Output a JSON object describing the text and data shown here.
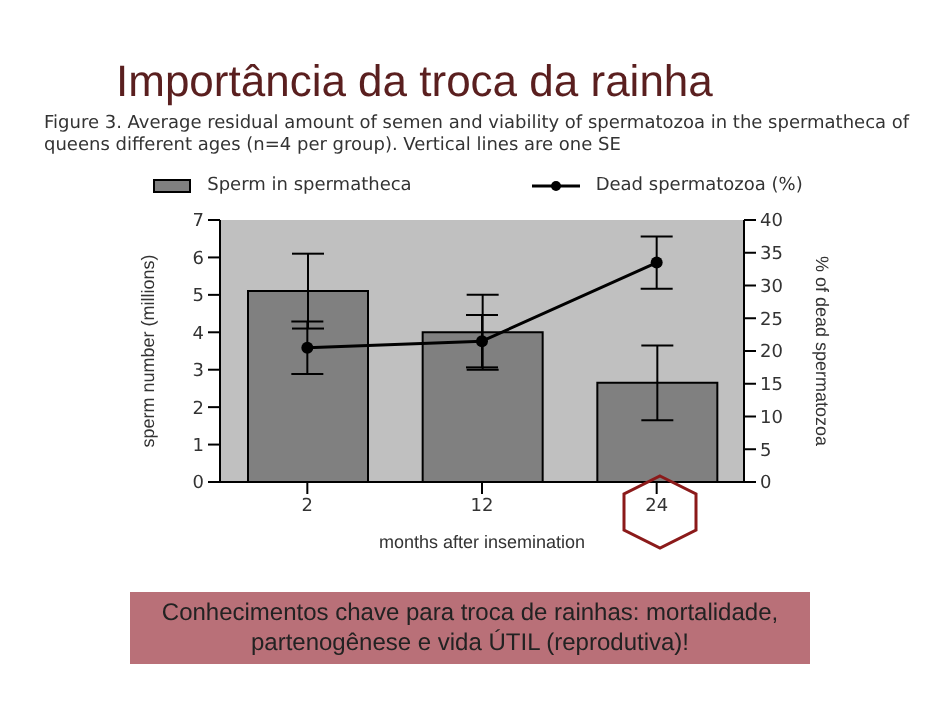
{
  "chart_data": {
    "type": "bar",
    "title": "Importância da troca da rainha",
    "subtitle": "Figure 3.    Average residual amount of semen and viability of spermatozoa in the spermatheca of queens different ages (n=4 per group). Vertical lines are one SE",
    "xlabel": "months after insemination",
    "ylabel": "sperm number (millions)",
    "y2label": "% of dead spermatozoa",
    "categories": [
      "2",
      "12",
      "24"
    ],
    "series": [
      {
        "name": "Sperm in spermatheca",
        "color": "#808080",
        "values": [
          5.1,
          4.0,
          2.65
        ],
        "errors": [
          1.0,
          1.0,
          1.0
        ]
      },
      {
        "name": "Dead spermatozoa (%)",
        "type": "line",
        "axis": "y2",
        "color": "#000000",
        "values": [
          20.5,
          21.5,
          33.5
        ],
        "errors": [
          4,
          4,
          4
        ]
      }
    ],
    "ylim": [
      0,
      7
    ],
    "yticks": [
      0,
      1,
      2,
      3,
      4,
      5,
      6,
      7
    ],
    "y2lim": [
      0,
      40
    ],
    "y2ticks": [
      0,
      5,
      10,
      15,
      20,
      25,
      30,
      35,
      40
    ],
    "legend": "top",
    "marker": "circle",
    "grid": false,
    "annotations": [
      "Conhecimentos chave para troca de rainhas: mortalidade, partenogênese e vida ÚTIL (reprodutiva)!"
    ]
  }
}
